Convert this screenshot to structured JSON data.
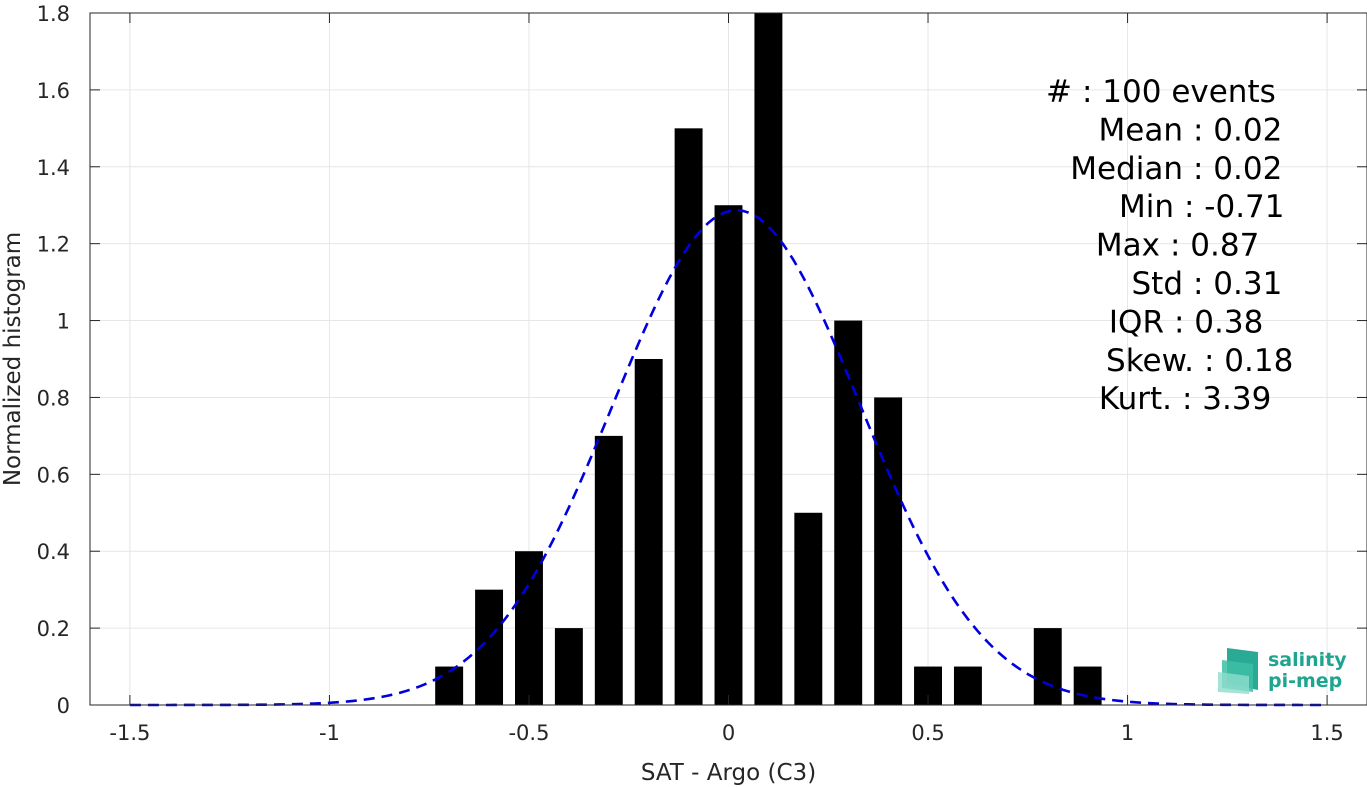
{
  "chart_data": {
    "type": "bar",
    "xlabel": "SAT - Argo (C3)",
    "ylabel": "Normalized histogram",
    "xlim": [
      -1.6,
      1.6
    ],
    "ylim": [
      0,
      1.8
    ],
    "xticks": [
      -1.5,
      -1,
      -0.5,
      0,
      0.5,
      1,
      1.5
    ],
    "xtick_labels": [
      "-1.5",
      "-1",
      "-0.5",
      "0",
      "0.5",
      "1",
      "1.5"
    ],
    "yticks": [
      0,
      0.2,
      0.4,
      0.6,
      0.8,
      1,
      1.2,
      1.4,
      1.6,
      1.8
    ],
    "ytick_labels": [
      "0",
      "0.2",
      "0.4",
      "0.6",
      "0.8",
      "1",
      "1.2",
      "1.4",
      "1.6",
      "1.8"
    ],
    "grid": true,
    "bar_color": "#000000",
    "bar_width": 0.07,
    "bars": {
      "x": [
        -0.7,
        -0.6,
        -0.5,
        -0.4,
        -0.3,
        -0.2,
        -0.1,
        0.0,
        0.1,
        0.2,
        0.3,
        0.4,
        0.5,
        0.6,
        0.8,
        0.9
      ],
      "values": [
        0.1,
        0.3,
        0.4,
        0.2,
        0.7,
        0.9,
        1.5,
        1.3,
        1.8,
        0.5,
        1.0,
        0.8,
        0.1,
        0.1,
        0.2,
        0.1
      ]
    },
    "fit_curve": {
      "style": "dashed",
      "color": "#0000dd",
      "distribution": "gaussian",
      "mean": 0.02,
      "std": 0.31,
      "x_range": [
        -1.5,
        1.5
      ]
    },
    "stats": [
      {
        "label": "#  ",
        "value": ": 100 events"
      },
      {
        "label": "Mean",
        "value": ": 0.02"
      },
      {
        "label": "Median",
        "value": ": 0.02"
      },
      {
        "label": "Min",
        "value": ": -0.71"
      },
      {
        "label": "Max",
        "value": ": 0.87"
      },
      {
        "label": "Std",
        "value": ": 0.31"
      },
      {
        "label": "IQR",
        "value": ": 0.38"
      },
      {
        "label": "Skew.",
        "value": ": 0.18"
      },
      {
        "label": "Kurt.",
        "value": ": 3.39"
      }
    ]
  },
  "logo": {
    "line1": "salinity",
    "line2": "pi-mep",
    "color": "#1fa58f"
  }
}
